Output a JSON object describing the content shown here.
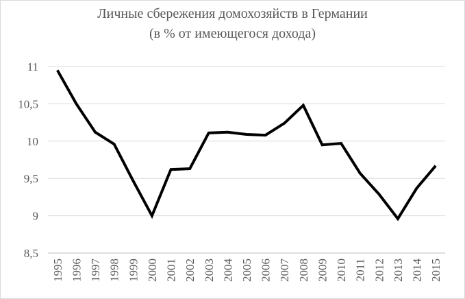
{
  "chart_data": {
    "type": "line",
    "title": "Личные сбережения домохозяйств в Германии",
    "subtitle": "(в % от имеющегося дохода)",
    "xlabel": "",
    "ylabel": "",
    "x": [
      "1995",
      "1996",
      "1997",
      "1998",
      "1999",
      "2000",
      "2001",
      "2002",
      "2003",
      "2004",
      "2005",
      "2006",
      "2007",
      "2008",
      "2009",
      "2010",
      "2011",
      "2012",
      "2013",
      "2014",
      "2015"
    ],
    "series": [
      {
        "values": [
          10.95,
          10.5,
          10.12,
          9.96,
          9.47,
          9.0,
          9.62,
          9.63,
          10.11,
          10.12,
          10.09,
          10.08,
          10.24,
          10.48,
          9.95,
          9.97,
          9.57,
          9.29,
          8.96,
          9.37,
          9.67
        ],
        "color": "#000000"
      }
    ],
    "ylim": [
      8.5,
      11
    ],
    "yticks": [
      8.5,
      9,
      9.5,
      10,
      10.5,
      11
    ],
    "ytick_labels": [
      "8,5",
      "9",
      "9,5",
      "10",
      "10,5",
      "11"
    ],
    "grid": true,
    "legend": "none"
  },
  "colors": {
    "text": "#595959",
    "grid": "#d9d9d9",
    "axis": "#bfbfbf",
    "line": "#000000"
  }
}
